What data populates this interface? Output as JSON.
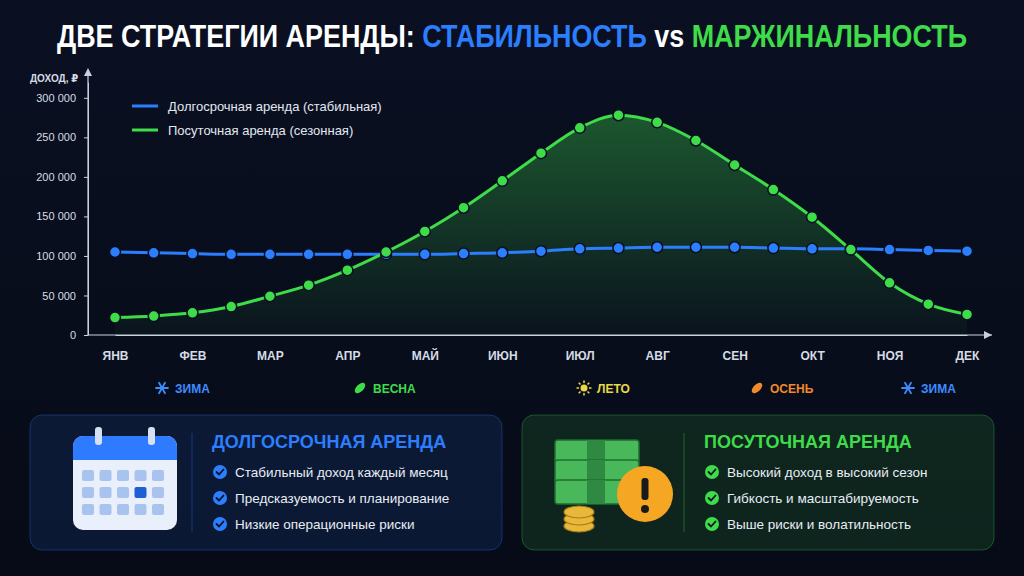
{
  "chart_data": {
    "type": "line",
    "title": "ДВЕ СТРАТЕГИИ АРЕНДЫ: СТАБИЛЬНОСТЬ vs МАРЖИНАЛЬНОСТЬ",
    "y_label": "ДОХОД, ₽",
    "categories": [
      "ЯНВ",
      null,
      "ФЕВ",
      null,
      "МАР",
      null,
      "АПР",
      null,
      "МАЙ",
      null,
      "ИЮН",
      null,
      "ИЮЛ",
      null,
      "АВГ",
      null,
      "СЕН",
      null,
      "ОКТ",
      null,
      "НОЯ",
      null,
      "ДЕК"
    ],
    "series": [
      {
        "name": "Долгосрочная аренда (стабильная)",
        "color": "#2b7fff",
        "type": "line",
        "marker": "circle",
        "line_style": "solid",
        "values": [
          105000,
          104000,
          103000,
          102000,
          102000,
          102000,
          102000,
          102000,
          102000,
          103000,
          104000,
          106000,
          109000,
          110000,
          111000,
          111000,
          111000,
          110000,
          109000,
          109000,
          108000,
          107000,
          106000
        ]
      },
      {
        "name": "Посуточная аренда (сезонная)",
        "color": "#3fdc4a",
        "type": "area",
        "marker": "circle",
        "line_style": "solid",
        "values": [
          22000,
          24000,
          28000,
          36000,
          49000,
          63000,
          82000,
          105000,
          131000,
          161000,
          195000,
          230000,
          262000,
          278000,
          269000,
          246000,
          215000,
          184000,
          149000,
          108000,
          66000,
          39000,
          26000
        ]
      }
    ],
    "ylim": [
      0,
      320000
    ],
    "yticks": [
      0,
      {
        "value": 50000,
        "label": "50 000"
      },
      {
        "value": 100000,
        "label": "100 000"
      },
      {
        "value": 150000,
        "label": "150 000"
      },
      {
        "value": 200000,
        "label": "200 000"
      },
      {
        "value": 250000,
        "label": "250 000"
      },
      {
        "value": 300000,
        "label": "300 000"
      }
    ],
    "grid": false,
    "legend": "upper left",
    "annotations": [
      {
        "text": "ЗИМА",
        "color": "#3d8bff"
      },
      {
        "text": "ВЕСНА",
        "color": "#3fdc4a"
      },
      {
        "text": "ЛЕТО",
        "color": "#e8d84a"
      },
      {
        "text": "ОСЕНЬ",
        "color": "#f08a2a"
      },
      {
        "text": "ЗИМА",
        "color": "#3d8bff"
      }
    ]
  },
  "panels": [
    {
      "title": "ДОЛГОСРОЧНАЯ АРЕНДА",
      "color": "#2b7fff",
      "items": [
        "Стабильный доход каждый месяц",
        "Предсказуемость и планирование",
        "Низкие операционные риски"
      ]
    },
    {
      "title": "ПОСУТОЧНАЯ АРЕНДА",
      "color": "#3fdc4a",
      "items": [
        "Высокий доход в высокий сезон",
        "Гибкость и масштабируемость",
        "Выше риски и волатильность"
      ]
    }
  ]
}
